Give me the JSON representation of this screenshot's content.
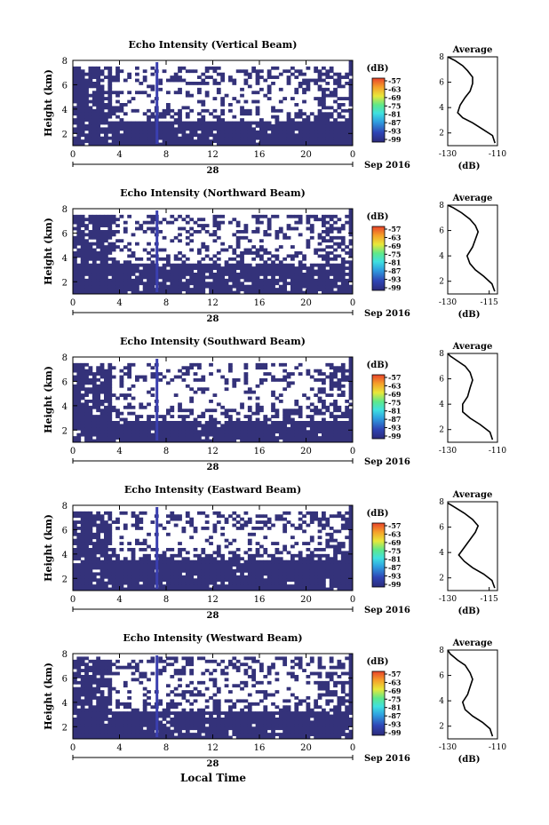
{
  "figure": {
    "bottom_label": "Local Time"
  },
  "chart_data": [
    {
      "type": "heatmap",
      "title": "Echo Intensity (Vertical Beam)",
      "ylabel": "Height (km)",
      "xticks": [
        "0",
        "4",
        "8",
        "12",
        "16",
        "20",
        "0"
      ],
      "xlim": [
        0,
        24
      ],
      "ylim": [
        1,
        8
      ],
      "yticks": [
        "2",
        "4",
        "6",
        "8"
      ],
      "date_day": "28",
      "date_month": "Sep 2016",
      "colorbar": {
        "unit": "(dB)",
        "labels": [
          "-57",
          "-63",
          "-69",
          "-75",
          "-81",
          "-87",
          "-93",
          "-99"
        ]
      },
      "profile": {
        "title": "Average",
        "xlabel": "(dB)",
        "xticks": [
          "-130",
          "-110"
        ],
        "xlim": [
          -130,
          -110
        ],
        "yticks": [
          "2",
          "4",
          "6",
          "8"
        ],
        "points": [
          [
            -111,
            1.2
          ],
          [
            -112,
            1.8
          ],
          [
            -116,
            2.3
          ],
          [
            -120,
            2.8
          ],
          [
            -124,
            3.2
          ],
          [
            -126,
            3.6
          ],
          [
            -125,
            4.2
          ],
          [
            -123,
            4.8
          ],
          [
            -121,
            5.3
          ],
          [
            -120,
            5.9
          ],
          [
            -120,
            6.4
          ],
          [
            -122,
            6.9
          ],
          [
            -124,
            7.3
          ],
          [
            -127,
            7.7
          ],
          [
            -130,
            8
          ]
        ]
      },
      "bands": [
        [
          1,
          3,
          0.95
        ],
        [
          3,
          4,
          0.45
        ],
        [
          4,
          6,
          0.18
        ],
        [
          6,
          7.5,
          0.35
        ]
      ]
    },
    {
      "type": "heatmap",
      "title": "Echo Intensity (Northward Beam)",
      "ylabel": "Height (km)",
      "xticks": [
        "0",
        "4",
        "8",
        "12",
        "16",
        "20",
        "0"
      ],
      "xlim": [
        0,
        24
      ],
      "ylim": [
        1,
        8
      ],
      "yticks": [
        "2",
        "4",
        "6",
        "8"
      ],
      "date_day": "28",
      "date_month": "Sep 2016",
      "colorbar": {
        "unit": "(dB)",
        "labels": [
          "-57",
          "-63",
          "-69",
          "-75",
          "-81",
          "-87",
          "-93",
          "-99"
        ]
      },
      "profile": {
        "title": "Average",
        "xlabel": "(dB)",
        "xticks": [
          "-130",
          "-115"
        ],
        "xlim": [
          -130,
          -112
        ],
        "yticks": [
          "2",
          "4",
          "6",
          "8"
        ],
        "points": [
          [
            -113,
            1.2
          ],
          [
            -114,
            1.8
          ],
          [
            -117,
            2.4
          ],
          [
            -120,
            2.9
          ],
          [
            -122,
            3.4
          ],
          [
            -123,
            4.0
          ],
          [
            -121,
            4.7
          ],
          [
            -120,
            5.3
          ],
          [
            -119,
            5.9
          ],
          [
            -120,
            6.4
          ],
          [
            -122,
            6.9
          ],
          [
            -125,
            7.4
          ],
          [
            -128,
            7.8
          ],
          [
            -130,
            8
          ]
        ]
      },
      "bands": [
        [
          1,
          3.4,
          0.95
        ],
        [
          3.4,
          4.5,
          0.4
        ],
        [
          4.5,
          6,
          0.2
        ],
        [
          6,
          7.5,
          0.35
        ]
      ]
    },
    {
      "type": "heatmap",
      "title": "Echo Intensity (Southward Beam)",
      "ylabel": "Height (km)",
      "xticks": [
        "0",
        "4",
        "8",
        "12",
        "16",
        "20",
        "0"
      ],
      "xlim": [
        0,
        24
      ],
      "ylim": [
        1,
        8
      ],
      "yticks": [
        "2",
        "4",
        "6",
        "8"
      ],
      "date_day": "28",
      "date_month": "Sep 2016",
      "colorbar": {
        "unit": "(dB)",
        "labels": [
          "-57",
          "-63",
          "-69",
          "-75",
          "-81",
          "-87",
          "-93",
          "-99"
        ]
      },
      "profile": {
        "title": "Average",
        "xlabel": "",
        "xticks": [
          "-130",
          "-110"
        ],
        "xlim": [
          -130,
          -110
        ],
        "yticks": [
          "2",
          "4",
          "6",
          "8"
        ],
        "points": [
          [
            -112,
            1.2
          ],
          [
            -113,
            1.8
          ],
          [
            -117,
            2.4
          ],
          [
            -121,
            2.9
          ],
          [
            -124,
            3.4
          ],
          [
            -124,
            4.0
          ],
          [
            -122,
            4.6
          ],
          [
            -121,
            5.3
          ],
          [
            -120,
            5.9
          ],
          [
            -121,
            6.5
          ],
          [
            -123,
            7.0
          ],
          [
            -126,
            7.4
          ],
          [
            -129,
            7.8
          ],
          [
            -130,
            8
          ]
        ]
      },
      "bands": [
        [
          1,
          2.8,
          0.95
        ],
        [
          2.8,
          4,
          0.45
        ],
        [
          4,
          6,
          0.15
        ],
        [
          6,
          7.5,
          0.3
        ]
      ]
    },
    {
      "type": "heatmap",
      "title": "Echo Intensity (Eastward Beam)",
      "ylabel": "Height (km)",
      "xticks": [
        "0",
        "4",
        "8",
        "12",
        "16",
        "20",
        "0"
      ],
      "xlim": [
        0,
        24
      ],
      "ylim": [
        1,
        8
      ],
      "yticks": [
        "2",
        "4",
        "6",
        "8"
      ],
      "date_day": "28",
      "date_month": "Sep 2016",
      "colorbar": {
        "unit": "(dB)",
        "labels": [
          "-57",
          "-63",
          "-69",
          "-75",
          "-81",
          "-87",
          "-93",
          "-99"
        ]
      },
      "profile": {
        "title": "Average",
        "xlabel": "(dB)",
        "xticks": [
          "-130",
          "-115"
        ],
        "xlim": [
          -130,
          -112
        ],
        "yticks": [
          "2",
          "4",
          "6",
          "8"
        ],
        "points": [
          [
            -113,
            1.2
          ],
          [
            -114,
            1.8
          ],
          [
            -117,
            2.3
          ],
          [
            -121,
            2.8
          ],
          [
            -124,
            3.3
          ],
          [
            -126,
            3.8
          ],
          [
            -124,
            4.4
          ],
          [
            -122,
            5.0
          ],
          [
            -120,
            5.6
          ],
          [
            -119,
            6.1
          ],
          [
            -121,
            6.6
          ],
          [
            -124,
            7.1
          ],
          [
            -127,
            7.5
          ],
          [
            -130,
            7.9
          ]
        ]
      },
      "bands": [
        [
          1,
          3.4,
          0.95
        ],
        [
          3.4,
          4.5,
          0.45
        ],
        [
          4.5,
          6,
          0.18
        ],
        [
          6,
          7.5,
          0.35
        ]
      ]
    },
    {
      "type": "heatmap",
      "title": "Echo Intensity (Westward Beam)",
      "ylabel": "Height (km)",
      "xticks": [
        "0",
        "4",
        "8",
        "12",
        "16",
        "20",
        "0"
      ],
      "xlim": [
        0,
        24
      ],
      "ylim": [
        1,
        8
      ],
      "yticks": [
        "2",
        "4",
        "6",
        "8"
      ],
      "date_day": "28",
      "date_month": "Sep 2016",
      "colorbar": {
        "unit": "(dB)",
        "labels": [
          "-57",
          "-63",
          "-69",
          "-75",
          "-81",
          "-87",
          "-93",
          "-99"
        ]
      },
      "profile": {
        "title": "Average",
        "xlabel": "(dB)",
        "xticks": [
          "-130",
          "-110"
        ],
        "xlim": [
          -130,
          -110
        ],
        "yticks": [
          "2",
          "4",
          "6",
          "8"
        ],
        "points": [
          [
            -112,
            1.2
          ],
          [
            -113,
            1.8
          ],
          [
            -116,
            2.3
          ],
          [
            -120,
            2.8
          ],
          [
            -123,
            3.3
          ],
          [
            -124,
            3.9
          ],
          [
            -122,
            4.5
          ],
          [
            -121,
            5.1
          ],
          [
            -120,
            5.7
          ],
          [
            -121,
            6.2
          ],
          [
            -123,
            6.8
          ],
          [
            -126,
            7.2
          ],
          [
            -129,
            7.7
          ],
          [
            -130,
            8
          ]
        ]
      },
      "bands": [
        [
          1,
          3.2,
          0.95
        ],
        [
          3.2,
          4.3,
          0.45
        ],
        [
          4.3,
          6.2,
          0.2
        ],
        [
          6.2,
          7.8,
          0.35
        ]
      ]
    }
  ]
}
